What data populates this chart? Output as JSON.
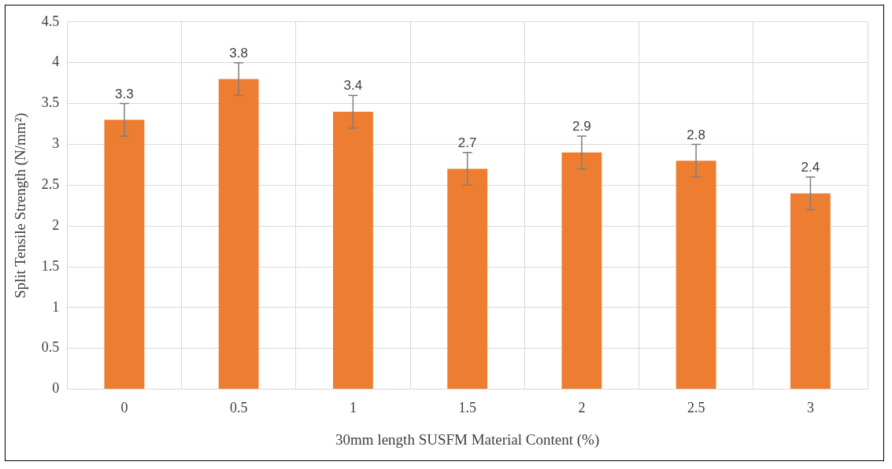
{
  "chart_data": {
    "type": "bar",
    "xlabel": "30mm length SUSFM Material Content (%)",
    "ylabel": "Split Tensile Strength (N/mm²)",
    "categories": [
      "0",
      "0.5",
      "1",
      "1.5",
      "2",
      "2.5",
      "3"
    ],
    "values": [
      3.3,
      3.8,
      3.4,
      2.7,
      2.9,
      2.8,
      2.4
    ],
    "errors": [
      0.2,
      0.2,
      0.2,
      0.2,
      0.2,
      0.2,
      0.2
    ],
    "color": "#ed7d31",
    "ylim": [
      0,
      4.5
    ],
    "yticks": [
      0,
      0.5,
      1,
      1.5,
      2,
      2.5,
      3,
      3.5,
      4,
      4.5
    ],
    "grid": true,
    "data_labels": true
  }
}
